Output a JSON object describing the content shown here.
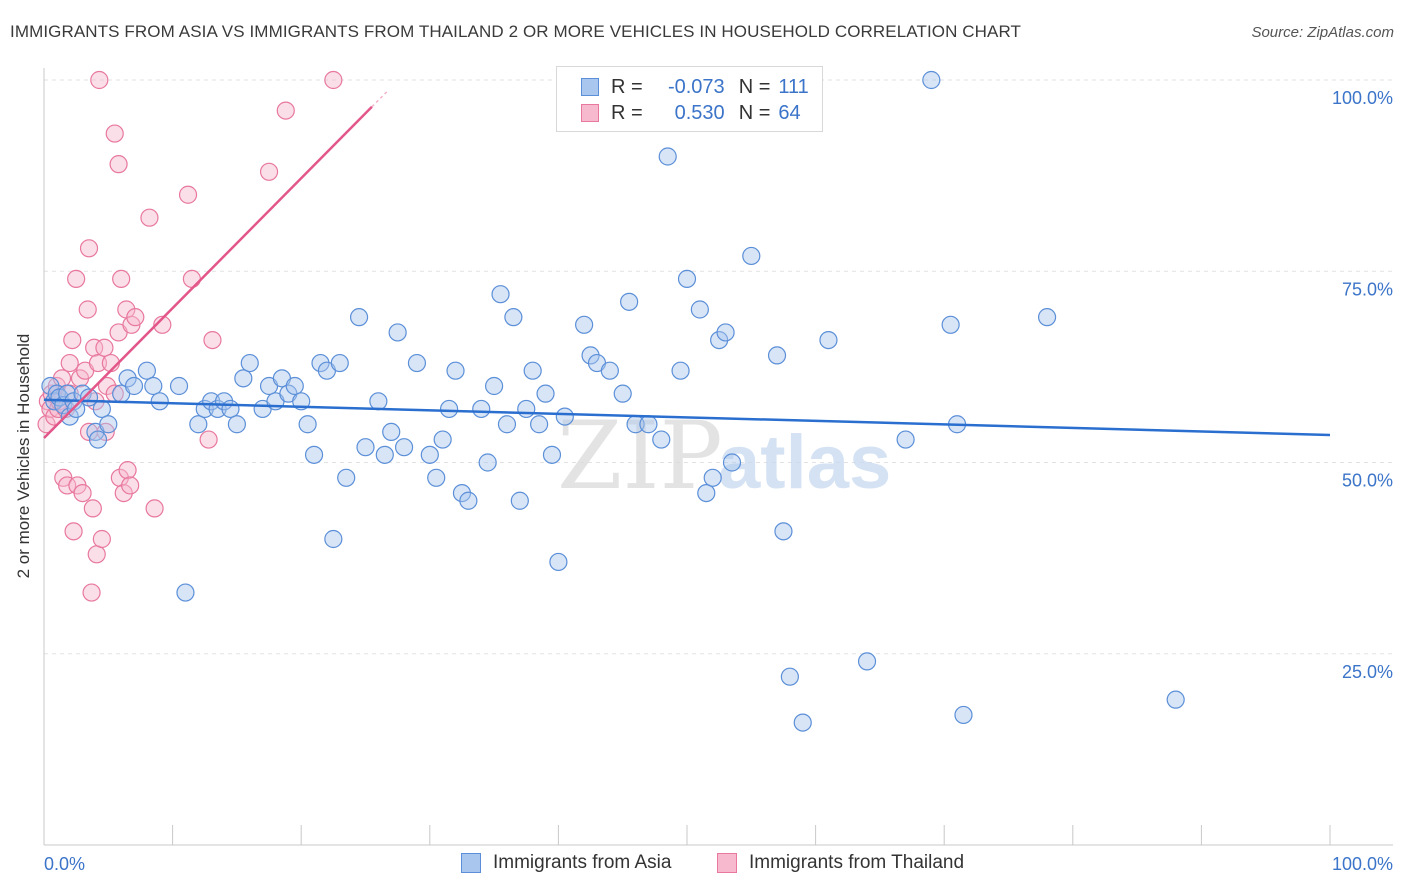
{
  "title": "IMMIGRANTS FROM ASIA VS IMMIGRANTS FROM THAILAND 2 OR MORE VEHICLES IN HOUSEHOLD CORRELATION CHART",
  "source": "Source: ZipAtlas.com",
  "watermark": {
    "zip": "ZIP",
    "atlas": "atlas"
  },
  "colors": {
    "asia_fill": "#a9c6ee",
    "asia_stroke": "#5b8fd8",
    "asia_line": "#2a6fcf",
    "thai_fill": "#f6b9cd",
    "thai_stroke": "#e8789d",
    "thai_line": "#e2568a",
    "axis_label": "#3b74c9",
    "grid": "#e2e2e2"
  },
  "legend": {
    "rows": [
      {
        "r_label": "R =",
        "r_value": "-0.073",
        "n_label": "N =",
        "n_value": "111"
      },
      {
        "r_label": "R =",
        "r_value": "0.530",
        "n_label": "N =",
        "n_value": "64"
      }
    ]
  },
  "bottom_legend": {
    "asia": "Immigrants from Asia",
    "thailand": "Immigrants from Thailand"
  },
  "chart_data": {
    "type": "scatter",
    "title": "IMMIGRANTS FROM ASIA VS IMMIGRANTS FROM THAILAND 2 OR MORE VEHICLES IN HOUSEHOLD CORRELATION CHART",
    "xlabel": "",
    "ylabel": "2 or more Vehicles in Household",
    "xlim": [
      0,
      100
    ],
    "ylim": [
      0,
      100
    ],
    "x_tick_labels": {
      "left": "0.0%",
      "right": "100.0%"
    },
    "y_ticks": [
      {
        "value": 100,
        "label": "100.0%"
      },
      {
        "value": 75,
        "label": "75.0%"
      },
      {
        "value": 50,
        "label": "50.0%"
      },
      {
        "value": 25,
        "label": "25.0%"
      }
    ],
    "series": [
      {
        "name": "Immigrants from Asia",
        "r": -0.073,
        "n": 111,
        "trend": {
          "x": [
            0,
            100
          ],
          "y": [
            58.2,
            53.6
          ]
        },
        "points": [
          [
            0.5,
            60
          ],
          [
            0.8,
            58
          ],
          [
            1,
            59
          ],
          [
            1.2,
            58.5
          ],
          [
            1.5,
            57.5
          ],
          [
            1.8,
            59
          ],
          [
            2,
            56
          ],
          [
            2.3,
            58
          ],
          [
            2.5,
            57
          ],
          [
            3,
            59
          ],
          [
            3.5,
            58.5
          ],
          [
            4,
            54
          ],
          [
            4.2,
            53
          ],
          [
            4.5,
            57
          ],
          [
            5,
            55
          ],
          [
            6,
            59
          ],
          [
            6.5,
            61
          ],
          [
            7,
            60
          ],
          [
            8,
            62
          ],
          [
            8.5,
            60
          ],
          [
            9,
            58
          ],
          [
            10.5,
            60
          ],
          [
            11,
            33
          ],
          [
            12,
            55
          ],
          [
            12.5,
            57
          ],
          [
            13,
            58
          ],
          [
            13.5,
            57
          ],
          [
            14,
            58
          ],
          [
            14.5,
            57
          ],
          [
            15,
            55
          ],
          [
            15.5,
            61
          ],
          [
            16,
            63
          ],
          [
            17,
            57
          ],
          [
            17.5,
            60
          ],
          [
            18,
            58
          ],
          [
            18.5,
            61
          ],
          [
            19,
            59
          ],
          [
            19.5,
            60
          ],
          [
            20,
            58
          ],
          [
            20.5,
            55
          ],
          [
            21,
            51
          ],
          [
            21.5,
            63
          ],
          [
            22,
            62
          ],
          [
            22.5,
            40
          ],
          [
            23,
            63
          ],
          [
            23.5,
            48
          ],
          [
            24.5,
            69
          ],
          [
            25,
            52
          ],
          [
            26,
            58
          ],
          [
            26.5,
            51
          ],
          [
            27,
            54
          ],
          [
            27.5,
            67
          ],
          [
            28,
            52
          ],
          [
            29,
            63
          ],
          [
            30,
            51
          ],
          [
            30.5,
            48
          ],
          [
            31,
            53
          ],
          [
            31.5,
            57
          ],
          [
            32,
            62
          ],
          [
            32.5,
            46
          ],
          [
            33,
            45
          ],
          [
            34,
            57
          ],
          [
            34.5,
            50
          ],
          [
            35,
            60
          ],
          [
            35.5,
            72
          ],
          [
            36,
            55
          ],
          [
            36.5,
            69
          ],
          [
            37,
            45
          ],
          [
            37.5,
            57
          ],
          [
            38,
            62
          ],
          [
            38.5,
            55
          ],
          [
            39,
            59
          ],
          [
            39.5,
            51
          ],
          [
            40,
            37
          ],
          [
            40.5,
            56
          ],
          [
            42,
            68
          ],
          [
            42.5,
            64
          ],
          [
            43,
            63
          ],
          [
            44,
            62
          ],
          [
            45,
            59
          ],
          [
            45.5,
            71
          ],
          [
            46,
            55
          ],
          [
            47,
            55
          ],
          [
            48,
            53
          ],
          [
            48.5,
            90
          ],
          [
            49.5,
            62
          ],
          [
            50,
            74
          ],
          [
            51,
            70
          ],
          [
            51.5,
            46
          ],
          [
            52,
            48
          ],
          [
            52.5,
            66
          ],
          [
            53,
            67
          ],
          [
            53.5,
            50
          ],
          [
            55,
            77
          ],
          [
            57,
            64
          ],
          [
            57.5,
            41
          ],
          [
            58,
            22
          ],
          [
            59,
            16
          ],
          [
            61,
            66
          ],
          [
            64,
            24
          ],
          [
            67,
            53
          ],
          [
            69,
            100
          ],
          [
            70.5,
            68
          ],
          [
            71,
            55
          ],
          [
            71.5,
            17
          ],
          [
            78,
            69
          ],
          [
            88,
            19
          ]
        ]
      },
      {
        "name": "Immigrants from Thailand",
        "r": 0.53,
        "n": 64,
        "trend": {
          "x": [
            0,
            25.5
          ],
          "y": [
            53.2,
            96.5
          ]
        },
        "points": [
          [
            0.2,
            55
          ],
          [
            0.3,
            58
          ],
          [
            0.5,
            57
          ],
          [
            0.6,
            59
          ],
          [
            0.8,
            56
          ],
          [
            1,
            60
          ],
          [
            1.1,
            57
          ],
          [
            1.2,
            58
          ],
          [
            1.4,
            61
          ],
          [
            1.5,
            48
          ],
          [
            1.7,
            57
          ],
          [
            1.8,
            47
          ],
          [
            2,
            59
          ],
          [
            2,
            63
          ],
          [
            2.2,
            66
          ],
          [
            2.3,
            41
          ],
          [
            2.5,
            74
          ],
          [
            2.6,
            47
          ],
          [
            2.8,
            61
          ],
          [
            3,
            46
          ],
          [
            3.2,
            62
          ],
          [
            3.4,
            70
          ],
          [
            3.5,
            54
          ],
          [
            3.5,
            78
          ],
          [
            3.7,
            33
          ],
          [
            3.8,
            44
          ],
          [
            3.9,
            65
          ],
          [
            4,
            58
          ],
          [
            4.1,
            38
          ],
          [
            4.2,
            63
          ],
          [
            4.3,
            100
          ],
          [
            4.5,
            40
          ],
          [
            4.7,
            65
          ],
          [
            4.8,
            54
          ],
          [
            4.9,
            60
          ],
          [
            5.2,
            63
          ],
          [
            5.5,
            93
          ],
          [
            5.5,
            59
          ],
          [
            5.8,
            89
          ],
          [
            5.8,
            67
          ],
          [
            5.9,
            48
          ],
          [
            6,
            74
          ],
          [
            6.2,
            46
          ],
          [
            6.4,
            70
          ],
          [
            6.5,
            49
          ],
          [
            6.7,
            47
          ],
          [
            6.8,
            68
          ],
          [
            7.1,
            69
          ],
          [
            8.2,
            82
          ],
          [
            8.6,
            44
          ],
          [
            9.2,
            68
          ],
          [
            11.2,
            85
          ],
          [
            11.5,
            74
          ],
          [
            12.8,
            53
          ],
          [
            13.1,
            66
          ],
          [
            17.5,
            88
          ],
          [
            18.8,
            96
          ],
          [
            22.5,
            100
          ]
        ]
      }
    ]
  }
}
